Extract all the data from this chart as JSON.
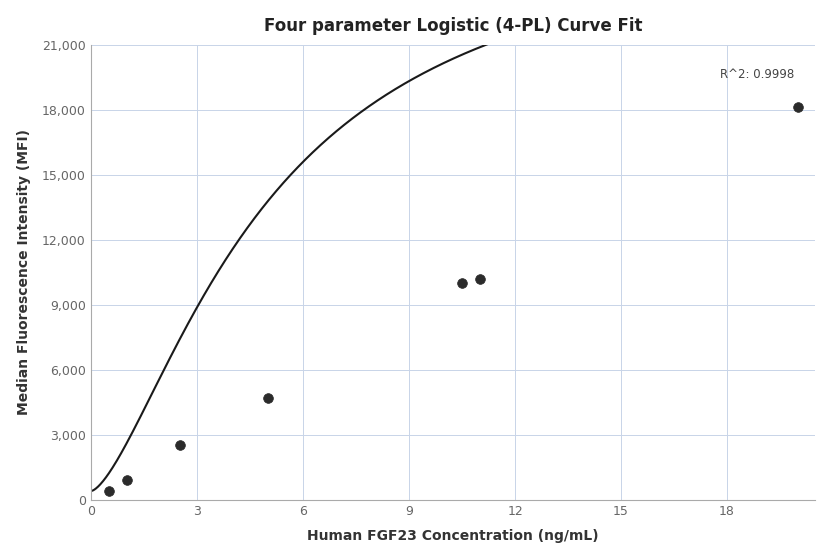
{
  "title": "Four parameter Logistic (4-PL) Curve Fit",
  "xlabel": "Human FGF23 Concentration (ng/mL)",
  "ylabel": "Median Fluorescence Intensity (MFI)",
  "r_squared": "R^2: 0.9998",
  "data_x": [
    0.5,
    1.0,
    2.5,
    5.0,
    10.5,
    11.0,
    20.0
  ],
  "data_y": [
    400,
    900,
    2500,
    4700,
    10000,
    10200,
    18100
  ],
  "xlim": [
    0,
    20.5
  ],
  "ylim": [
    0,
    21000
  ],
  "xticks": [
    0,
    3,
    6,
    9,
    12,
    15,
    18
  ],
  "yticks": [
    0,
    3000,
    6000,
    9000,
    12000,
    15000,
    18000,
    21000
  ],
  "background_color": "#ffffff",
  "grid_color": "#c8d4e8",
  "line_color": "#1a1a1a",
  "marker_color": "#2b2b2b",
  "title_fontsize": 12,
  "label_fontsize": 10,
  "tick_fontsize": 9,
  "annotation_fontsize": 8.5,
  "line_width": 1.5,
  "marker_size": 7
}
